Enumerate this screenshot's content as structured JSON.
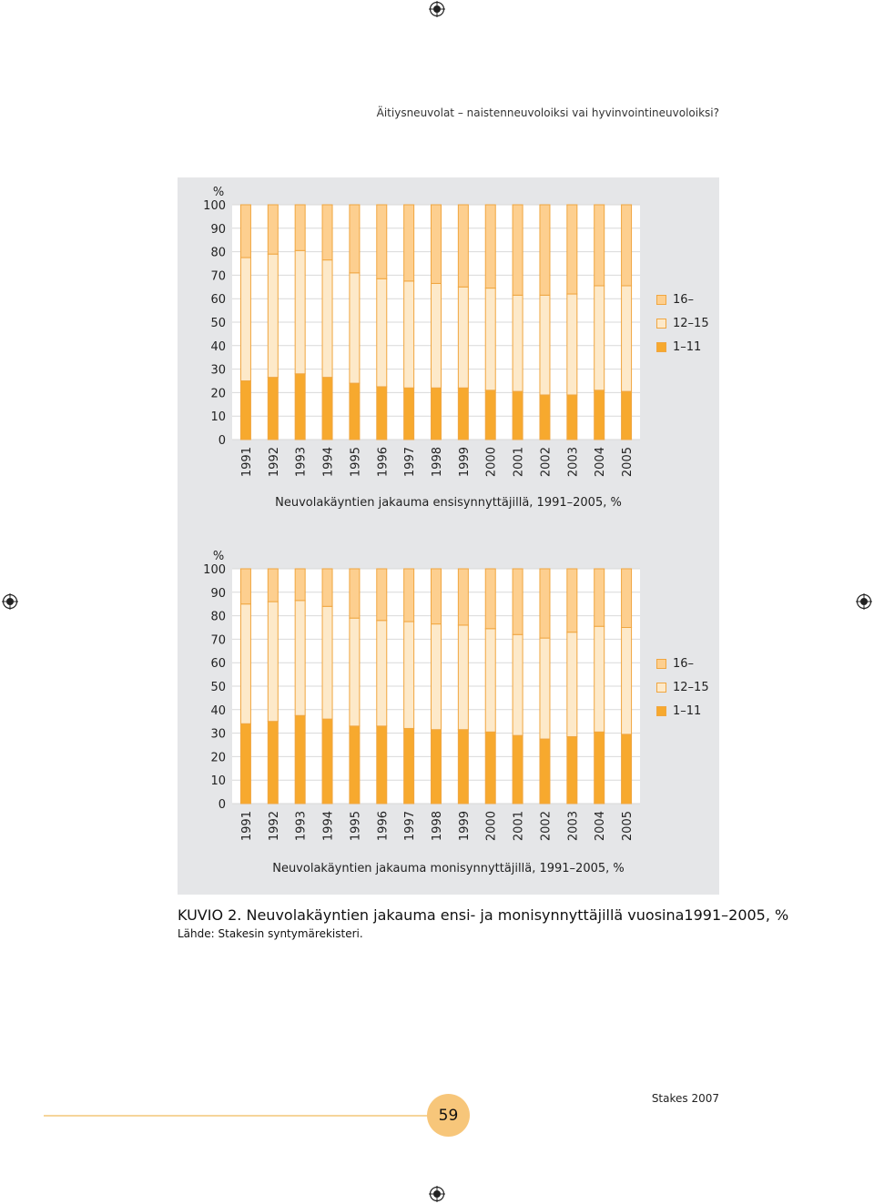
{
  "header": {
    "running_title": "Äitiysneuvolat – naistenneuvoloiksi vai hyvinvointineuvoloiksi?"
  },
  "colors": {
    "c16": "#fdcf8f",
    "c12_15": "#fde9c9",
    "c1_11": "#f7a92e",
    "stroke": "#f0a640",
    "panel": "#e5e6e8"
  },
  "legend": {
    "items": [
      {
        "label": "16–"
      },
      {
        "label": "12–15"
      },
      {
        "label": "1–11"
      }
    ]
  },
  "chart_data": [
    {
      "type": "bar",
      "stacked": true,
      "title": "Neuvolakäyntien jakauma ensisynnyttäjillä, 1991–2005, %",
      "ylabel": "%",
      "ylim": [
        0,
        100
      ],
      "yticks": [
        0,
        10,
        20,
        30,
        40,
        50,
        60,
        70,
        80,
        90,
        100
      ],
      "categories": [
        "1991",
        "1992",
        "1993",
        "1994",
        "1995",
        "1996",
        "1997",
        "1998",
        "1999",
        "2000",
        "2001",
        "2002",
        "2003",
        "2004",
        "2005"
      ],
      "series": [
        {
          "name": "1–11",
          "values": [
            25,
            26.5,
            28,
            26.5,
            24,
            22.5,
            22,
            22,
            22,
            21,
            20.5,
            19,
            19,
            21,
            20.5
          ]
        },
        {
          "name": "12–15",
          "values": [
            52.5,
            52.5,
            52.5,
            50,
            47,
            46,
            45.5,
            44.5,
            43,
            43.5,
            41,
            42.5,
            43,
            44.5,
            45
          ]
        },
        {
          "name": "16–",
          "values": [
            22.5,
            21,
            19.5,
            23.5,
            29,
            31.5,
            32.5,
            33.5,
            35,
            35.5,
            38.5,
            38.5,
            38,
            34.5,
            34.5
          ]
        }
      ],
      "legend_position": "right"
    },
    {
      "type": "bar",
      "stacked": true,
      "title": "Neuvolakäyntien jakauma monisynnyttäjillä, 1991–2005, %",
      "ylabel": "%",
      "ylim": [
        0,
        100
      ],
      "yticks": [
        0,
        10,
        20,
        30,
        40,
        50,
        60,
        70,
        80,
        90,
        100
      ],
      "categories": [
        "1991",
        "1992",
        "1993",
        "1994",
        "1995",
        "1996",
        "1997",
        "1998",
        "1999",
        "2000",
        "2001",
        "2002",
        "2003",
        "2004",
        "2005"
      ],
      "series": [
        {
          "name": "1–11",
          "values": [
            34,
            35,
            37.5,
            36,
            33,
            33,
            32,
            31.5,
            31.5,
            30.5,
            29,
            27.5,
            28.5,
            30.5,
            29.5
          ]
        },
        {
          "name": "12–15",
          "values": [
            51,
            51,
            49,
            48,
            46,
            45,
            45.5,
            45,
            44.5,
            44,
            43,
            43,
            44.5,
            45,
            45.5
          ]
        },
        {
          "name": "16–",
          "values": [
            15,
            14,
            13.5,
            16,
            21,
            22,
            22.5,
            23.5,
            24,
            25.5,
            28,
            29.5,
            27,
            24.5,
            25
          ]
        }
      ],
      "legend_position": "right"
    }
  ],
  "figure": {
    "kuvio_label": "KUVIO 2.",
    "caption": "Neuvolakäyntien jakauma ensi- ja monisynnyttäjillä vuosina1991–2005, %",
    "source": "Lähde: Stakesin syntymärekisteri."
  },
  "footer": {
    "page_number": "59",
    "publisher": "Stakes 2007"
  }
}
